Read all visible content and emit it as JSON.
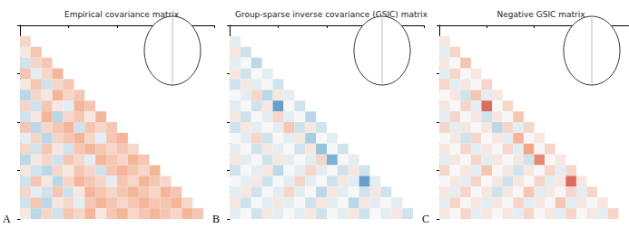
{
  "chart_data": [
    {
      "type": "heatmap",
      "title": "Empirical covariance matrix",
      "panel_label": "A",
      "xlim": [
        0,
        18
      ],
      "ylim": [
        0,
        18
      ],
      "xticks": [
        4.5,
        9,
        13.5,
        18
      ],
      "yticks": [
        4.5,
        9,
        13.5,
        18
      ],
      "tick_labels": false,
      "vlim": [
        -1,
        1
      ],
      "cells": [
        [
          0.2
        ],
        [
          0.1,
          0.3
        ],
        [
          -0.2,
          0.2,
          0.3
        ],
        [
          0.3,
          -0.1,
          0.2,
          0.4
        ],
        [
          0.1,
          0.3,
          -0.2,
          0.2,
          0.3
        ],
        [
          -0.3,
          0.2,
          0.1,
          0.4,
          0.2,
          0.3
        ],
        [
          0.2,
          -0.2,
          0.3,
          0.1,
          -0.1,
          0.4,
          0.3
        ],
        [
          -0.2,
          0.1,
          0.4,
          -0.3,
          0.2,
          0.3,
          0.1,
          0.4
        ],
        [
          0.3,
          -0.3,
          0.2,
          0.3,
          0.4,
          -0.2,
          0.3,
          0.2,
          0.3
        ],
        [
          -0.1,
          0.2,
          -0.3,
          0.2,
          0.3,
          0.4,
          0.2,
          -0.1,
          0.3,
          0.4
        ],
        [
          0.2,
          -0.2,
          0.3,
          0.1,
          -0.2,
          0.3,
          0.4,
          0.3,
          0.2,
          0.3,
          0.2
        ],
        [
          -0.3,
          0.1,
          0.2,
          -0.2,
          0.3,
          0.2,
          -0.1,
          0.4,
          0.3,
          0.2,
          0.4,
          0.3
        ],
        [
          0.1,
          -0.2,
          -0.3,
          0.2,
          0.1,
          0.3,
          0.2,
          -0.2,
          0.3,
          0.4,
          0.3,
          0.2,
          0.4
        ],
        [
          -0.2,
          0.3,
          0.1,
          -0.3,
          0.2,
          0.4,
          0.3,
          0.2,
          -0.1,
          0.3,
          0.2,
          0.4,
          0.3,
          0.2
        ],
        [
          0.2,
          -0.1,
          -0.2,
          0.3,
          -0.2,
          0.1,
          0.4,
          0.3,
          0.2,
          0.3,
          0.4,
          0.3,
          0.2,
          0.4,
          0.3
        ],
        [
          -0.2,
          0.3,
          -0.3,
          0.1,
          0.2,
          -0.1,
          0.3,
          0.4,
          0.3,
          0.2,
          0.3,
          0.4,
          0.3,
          0.3,
          0.4,
          0.2
        ],
        [
          0.1,
          -0.3,
          0.2,
          -0.2,
          0.3,
          0.2,
          0.4,
          0.1,
          0.3,
          0.4,
          0.2,
          0.3,
          0.4,
          0.3,
          0.2,
          0.4,
          0.3
        ]
      ]
    },
    {
      "type": "heatmap",
      "title": "Group-sparse inverse covariance (GSIC) matrix",
      "panel_label": "B",
      "xlim": [
        0,
        18
      ],
      "ylim": [
        0,
        18
      ],
      "xticks": [
        4.5,
        9,
        13.5,
        18
      ],
      "yticks": [
        4.5,
        9,
        13.5,
        18
      ],
      "tick_labels": false,
      "vlim": [
        -1,
        1
      ],
      "cells": [
        [
          -0.1
        ],
        [
          0.1,
          -0.2
        ],
        [
          -0.1,
          0.0,
          -0.3
        ],
        [
          0.1,
          -0.2,
          0.0,
          -0.1
        ],
        [
          -0.2,
          0.1,
          -0.1,
          0.0,
          -0.2
        ],
        [
          0.0,
          -0.1,
          0.2,
          -0.3,
          0.1,
          -0.1
        ],
        [
          -0.1,
          0.0,
          -0.2,
          0.1,
          -0.7,
          0.0,
          -0.2
        ],
        [
          0.1,
          -0.2,
          0.0,
          -0.1,
          0.2,
          -0.1,
          0.0,
          -0.3
        ],
        [
          -0.2,
          0.1,
          -0.1,
          0.0,
          -0.1,
          0.3,
          -0.2,
          0.1,
          -0.2
        ],
        [
          0.0,
          -0.1,
          0.2,
          -0.2,
          0.0,
          -0.1,
          0.1,
          -0.4,
          0.0,
          -0.1
        ],
        [
          -0.1,
          0.0,
          -0.2,
          0.1,
          -0.1,
          0.0,
          -0.2,
          0.1,
          -0.5,
          0.0,
          -0.2
        ],
        [
          0.1,
          -0.1,
          0.0,
          -0.2,
          0.1,
          -0.1,
          0.0,
          -0.1,
          0.2,
          -0.6,
          0.0,
          -0.1
        ],
        [
          -0.2,
          0.0,
          -0.1,
          0.1,
          -0.3,
          0.0,
          -0.1,
          0.2,
          -0.1,
          0.0,
          -0.2,
          0.1,
          -0.2
        ],
        [
          0.0,
          -0.1,
          0.1,
          -0.2,
          0.0,
          -0.1,
          0.2,
          -0.1,
          0.0,
          -0.2,
          0.1,
          -0.1,
          -0.7,
          -0.1
        ],
        [
          -0.1,
          0.1,
          -0.2,
          0.0,
          -0.1,
          0.2,
          -0.1,
          0.0,
          -0.3,
          0.1,
          -0.1,
          0.0,
          -0.2,
          0.1,
          -0.2
        ],
        [
          0.1,
          -0.2,
          0.0,
          -0.1,
          0.1,
          -0.1,
          0.0,
          -0.2,
          0.1,
          -0.1,
          0.0,
          -0.3,
          0.1,
          -0.1,
          0.0,
          -0.1
        ],
        [
          -0.1,
          0.0,
          -0.2,
          0.1,
          -0.1,
          0.0,
          -0.1,
          0.1,
          -0.2,
          0.0,
          -0.1,
          0.1,
          -0.2,
          0.0,
          -0.1,
          0.1,
          -0.2
        ]
      ]
    },
    {
      "type": "heatmap",
      "title": "Negative GSIC matrix",
      "panel_label": "C",
      "xlim": [
        0,
        18
      ],
      "ylim": [
        0,
        18
      ],
      "xticks": [
        4.5,
        9,
        13.5,
        18
      ],
      "yticks": [
        4.5,
        9,
        13.5,
        18
      ],
      "tick_labels": false,
      "vlim": [
        -1,
        1
      ],
      "cells": [
        [
          0.1
        ],
        [
          -0.1,
          0.2
        ],
        [
          0.1,
          0.0,
          0.3
        ],
        [
          -0.1,
          0.2,
          0.0,
          0.1
        ],
        [
          0.2,
          -0.1,
          0.1,
          0.0,
          0.2
        ],
        [
          0.0,
          0.1,
          -0.2,
          0.3,
          -0.1,
          0.1
        ],
        [
          0.1,
          0.0,
          0.2,
          -0.1,
          0.7,
          0.0,
          0.2
        ],
        [
          -0.1,
          0.2,
          0.0,
          0.1,
          -0.2,
          0.1,
          0.0,
          0.3
        ],
        [
          0.2,
          -0.1,
          0.1,
          0.0,
          0.1,
          -0.3,
          0.2,
          -0.1,
          0.2
        ],
        [
          0.0,
          0.1,
          -0.2,
          0.2,
          0.0,
          0.1,
          -0.1,
          0.4,
          0.0,
          0.1
        ],
        [
          0.1,
          0.0,
          0.2,
          -0.1,
          0.1,
          0.0,
          0.2,
          -0.1,
          0.5,
          0.0,
          0.2
        ],
        [
          -0.1,
          0.1,
          0.0,
          0.2,
          -0.1,
          0.1,
          0.0,
          0.1,
          -0.2,
          0.6,
          0.0,
          0.1
        ],
        [
          0.2,
          0.0,
          0.1,
          -0.1,
          0.3,
          0.0,
          0.1,
          -0.2,
          0.1,
          0.0,
          0.2,
          -0.1,
          0.2
        ],
        [
          0.0,
          0.1,
          -0.1,
          0.2,
          0.0,
          0.1,
          -0.2,
          0.1,
          0.0,
          0.2,
          -0.1,
          0.1,
          0.7,
          0.1
        ],
        [
          0.1,
          -0.1,
          0.2,
          0.0,
          0.1,
          -0.2,
          0.1,
          0.0,
          0.3,
          -0.1,
          0.1,
          0.0,
          0.2,
          -0.1,
          0.2
        ],
        [
          -0.1,
          0.2,
          0.0,
          0.1,
          -0.1,
          0.1,
          0.0,
          0.2,
          -0.1,
          0.1,
          0.0,
          0.3,
          -0.1,
          0.1,
          0.0,
          0.1
        ],
        [
          0.1,
          0.0,
          0.2,
          -0.1,
          0.1,
          0.0,
          0.1,
          -0.1,
          0.2,
          0.0,
          0.1,
          -0.1,
          0.2,
          0.0,
          0.1,
          -0.1,
          0.2
        ]
      ]
    }
  ]
}
